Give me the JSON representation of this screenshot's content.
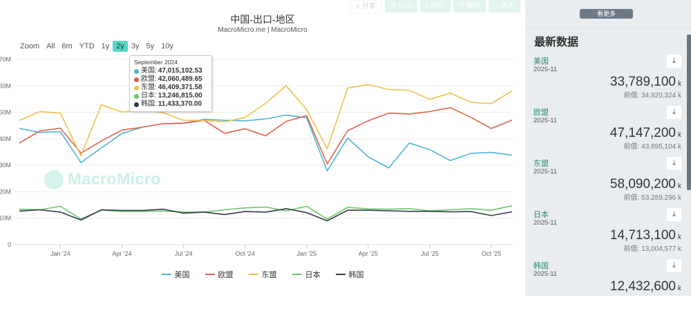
{
  "toolbar": {
    "share": "分享",
    "subscribe": "订阅",
    "image": "图片",
    "edit": "编辑",
    "expand": "放大"
  },
  "header": {
    "title": "中国-出口-地区",
    "subtitle": "MacroMicro.me | MacroMicro",
    "watermark": "MacroMicro"
  },
  "range_selector": {
    "label": "Zoom",
    "options": [
      "All",
      "6m",
      "YTD",
      "1y",
      "2y",
      "3y",
      "5y",
      "10y"
    ],
    "active": "2y"
  },
  "tooltip": {
    "date": "September 2024",
    "rows": [
      {
        "name": "美国",
        "value": "47,015,102.53"
      },
      {
        "name": "欧盟",
        "value": "42,060,489.65"
      },
      {
        "name": "东盟",
        "value": "46,409,371.58"
      },
      {
        "name": "日本",
        "value": "13,246,815.00"
      },
      {
        "name": "韩国",
        "value": "11,433,370.00"
      }
    ]
  },
  "chart_data": {
    "type": "line",
    "title": "中国-出口-地区",
    "subtitle": "MacroMicro.me | MacroMicro",
    "x": [
      "2023-11",
      "2023-12",
      "2024-01",
      "2024-02",
      "2024-03",
      "2024-04",
      "2024-05",
      "2024-06",
      "2024-07",
      "2024-08",
      "2024-09",
      "2024-10",
      "2024-11",
      "2024-12",
      "2025-01",
      "2025-02",
      "2025-03",
      "2025-04",
      "2025-05",
      "2025-06",
      "2025-07",
      "2025-08",
      "2025-09",
      "2025-10",
      "2025-11"
    ],
    "x_ticks": [
      {
        "date": "2024-01",
        "label": "Jan '24"
      },
      {
        "date": "2024-04",
        "label": "Apr '24"
      },
      {
        "date": "2024-07",
        "label": "Jul '24"
      },
      {
        "date": "2024-10",
        "label": "Oct '24"
      },
      {
        "date": "2025-01",
        "label": "Jan '25"
      },
      {
        "date": "2025-04",
        "label": "Apr '25"
      },
      {
        "date": "2025-07",
        "label": "Jul '25"
      },
      {
        "date": "2025-10",
        "label": "Oct '25"
      }
    ],
    "y_ticks": [
      {
        "v": 0,
        "label": "0"
      },
      {
        "v": 10,
        "label": "10M"
      },
      {
        "v": 20,
        "label": "20M"
      },
      {
        "v": 30,
        "label": "30M"
      },
      {
        "v": 40,
        "label": "40M"
      },
      {
        "v": 50,
        "label": "50M"
      },
      {
        "v": 60,
        "label": "60M"
      },
      {
        "v": 70,
        "label": "70M"
      }
    ],
    "ylim": [
      0,
      70
    ],
    "y_unit": "M",
    "grid": true,
    "legend_position": "bottom",
    "series": [
      {
        "name": "美国",
        "color": "#4db3d6",
        "values": [
          43.9,
          42.4,
          42.7,
          31.0,
          36.6,
          42.0,
          44.4,
          45.7,
          45.9,
          47.4,
          47.0,
          46.8,
          47.5,
          49.0,
          47.9,
          27.9,
          40.3,
          33.2,
          29.0,
          38.4,
          35.9,
          31.8,
          34.5,
          34.9,
          33.8
        ]
      },
      {
        "name": "欧盟",
        "color": "#e0604a",
        "values": [
          38.4,
          43.0,
          44.0,
          34.6,
          39.2,
          43.3,
          44.4,
          45.7,
          45.9,
          47.0,
          42.1,
          43.8,
          41.1,
          46.6,
          48.8,
          30.5,
          43.1,
          46.8,
          49.7,
          49.4,
          50.3,
          51.8,
          48.1,
          43.9,
          47.1
        ]
      },
      {
        "name": "东盟",
        "color": "#f0c04a",
        "values": [
          47.0,
          50.3,
          49.7,
          33.6,
          52.9,
          50.1,
          50.9,
          49.9,
          47.0,
          47.0,
          46.4,
          48.1,
          53.4,
          60.1,
          51.0,
          36.2,
          59.2,
          60.5,
          58.6,
          58.3,
          54.9,
          57.3,
          53.8,
          53.3,
          58.1
        ]
      },
      {
        "name": "日本",
        "color": "#6cc46a",
        "values": [
          13.4,
          13.2,
          14.5,
          9.7,
          13.0,
          12.6,
          12.6,
          12.7,
          12.3,
          12.3,
          13.2,
          13.9,
          14.2,
          12.8,
          14.5,
          9.7,
          14.1,
          13.5,
          13.4,
          13.6,
          12.8,
          13.2,
          13.6,
          13.0,
          14.7
        ]
      },
      {
        "name": "韩国",
        "color": "#333a45",
        "values": [
          12.7,
          13.2,
          12.3,
          9.3,
          13.2,
          12.9,
          12.9,
          13.4,
          11.9,
          12.3,
          11.4,
          12.5,
          12.3,
          13.6,
          12.1,
          9.0,
          13.0,
          13.0,
          12.8,
          12.6,
          12.6,
          12.4,
          12.5,
          11.0,
          12.4
        ]
      }
    ]
  },
  "sidebar": {
    "more_label": "看更多",
    "title": "最新数据",
    "unit": "k",
    "prev_label": "前值:",
    "items": [
      {
        "label": "美国",
        "date": "2025-11",
        "value": "33,789,100",
        "prev": "34,920,324 k"
      },
      {
        "label": "欧盟",
        "date": "2025-11",
        "value": "47,147,200",
        "prev": "43,895,104 k"
      },
      {
        "label": "东盟",
        "date": "2025-11",
        "value": "58,090,200",
        "prev": "53,289,296 k"
      },
      {
        "label": "日本",
        "date": "2025-11",
        "value": "14,713,100",
        "prev": "13,004,577 k"
      },
      {
        "label": "韩国",
        "date": "2025-11",
        "value": "12,432,600",
        "prev": ""
      }
    ]
  }
}
